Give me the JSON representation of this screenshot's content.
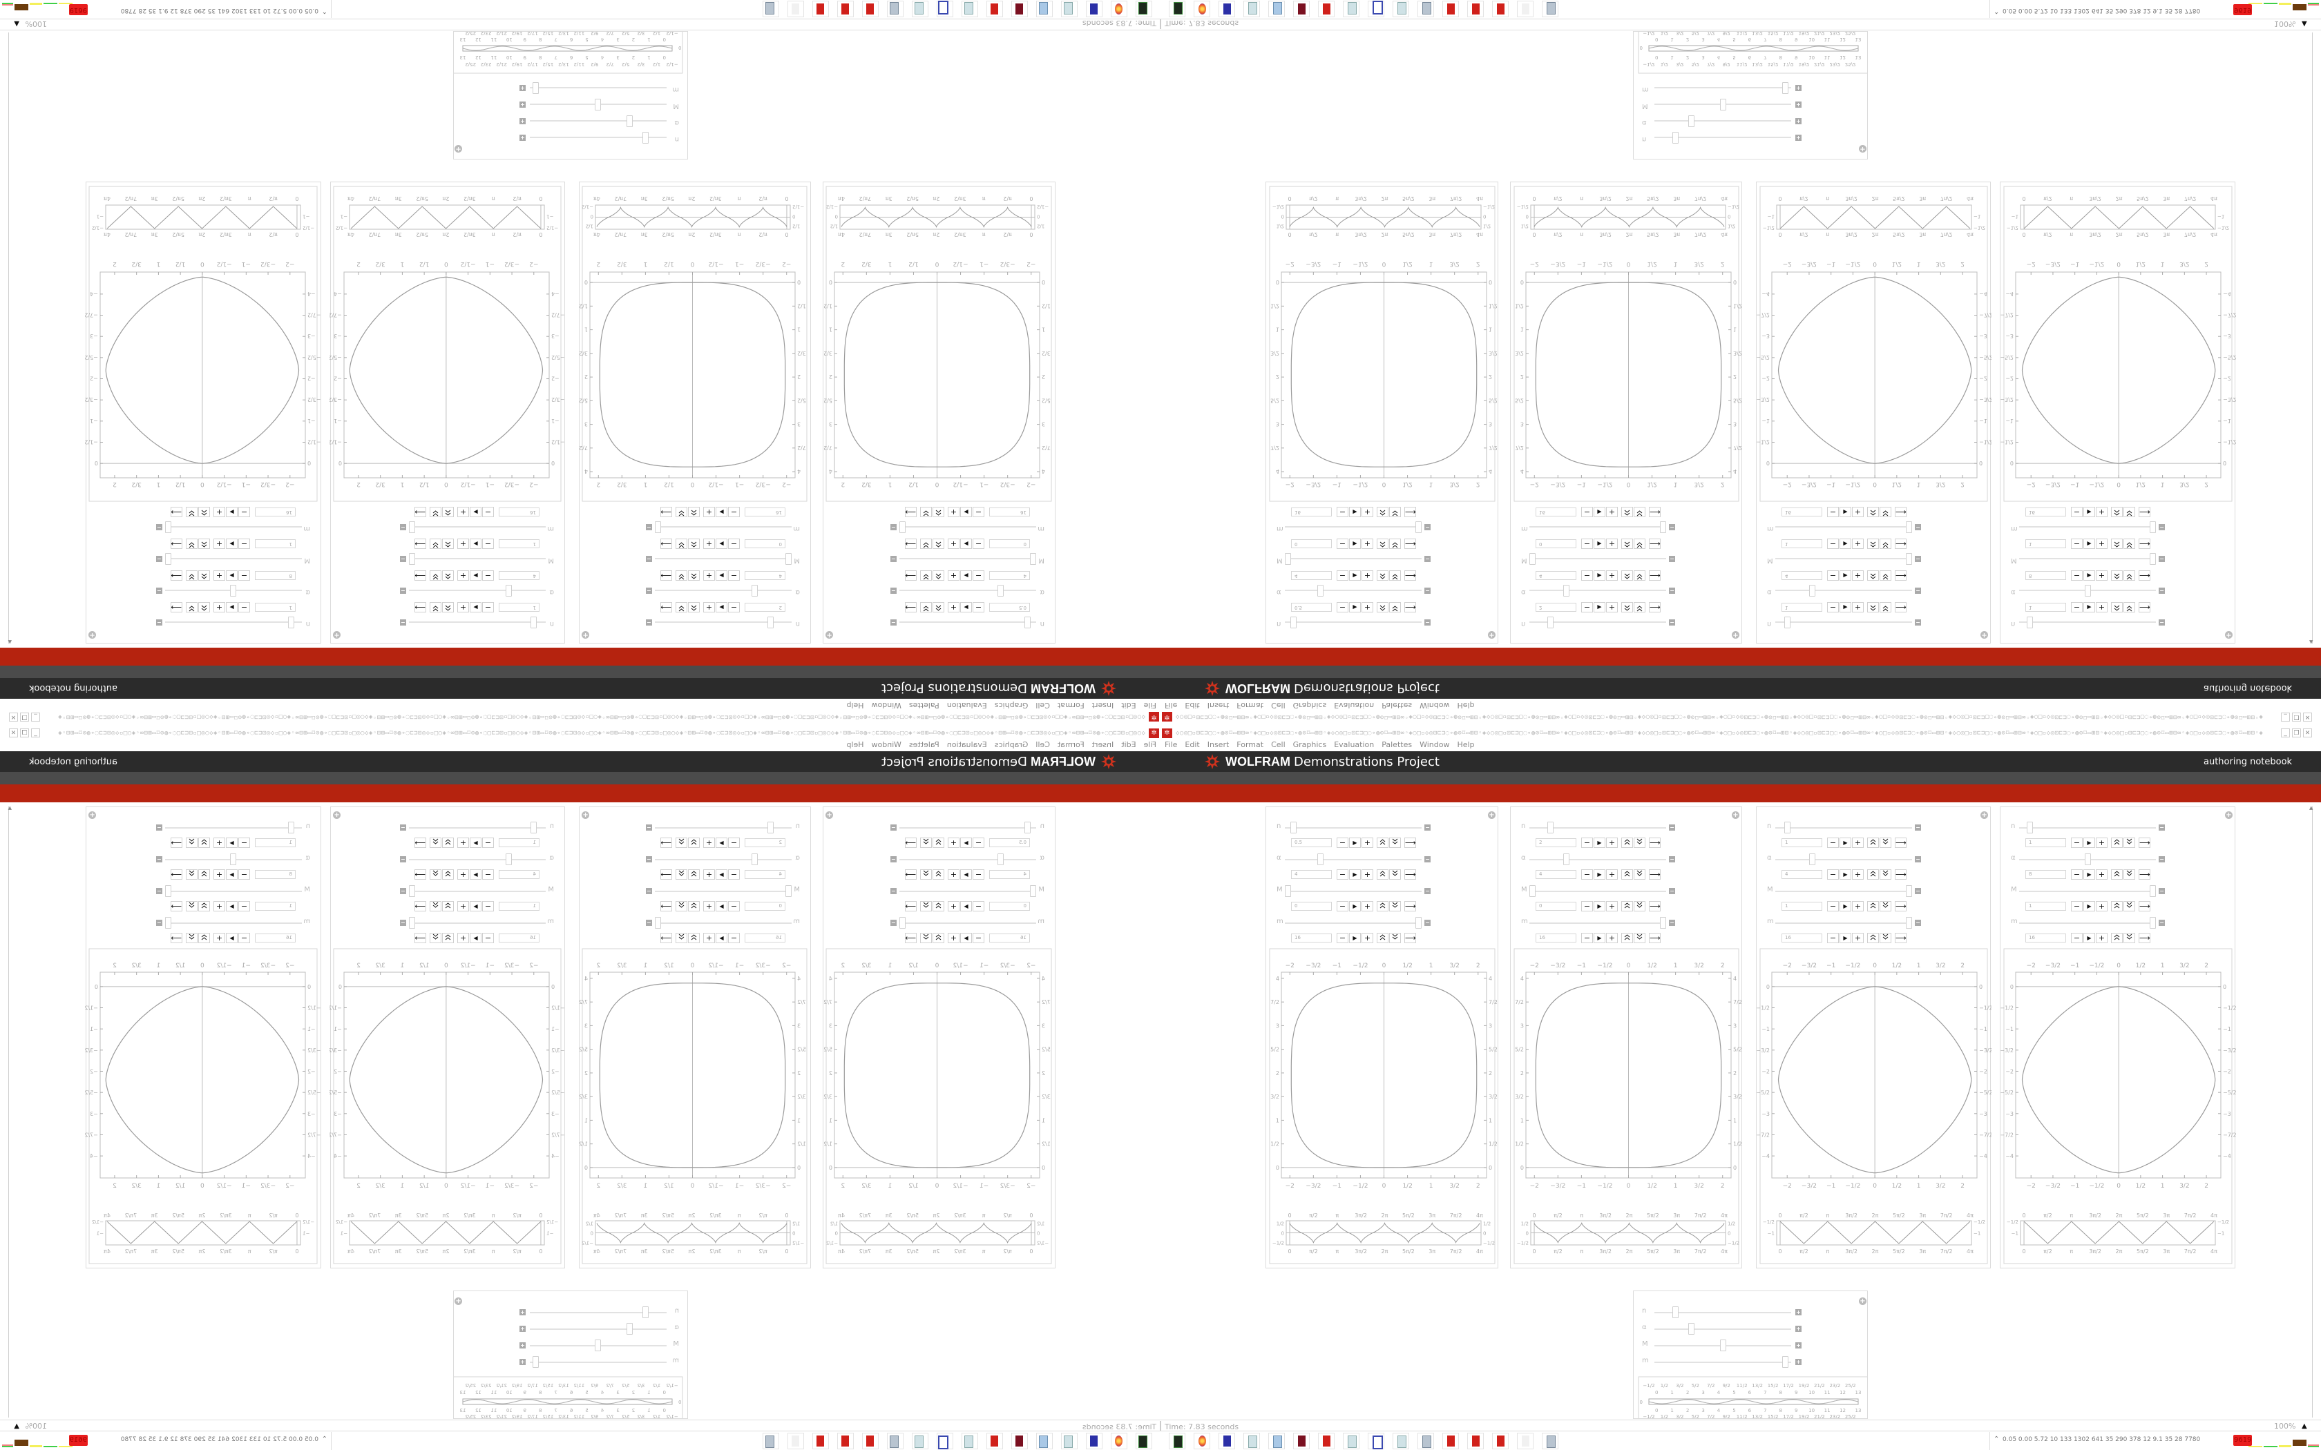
{
  "toolbar": {
    "glyphs": "◇○◎□▫⊡⊏⊐▢◌∘◍⊙⌑▭⊞⊟∞◦◈○□▫◇◎⊡⊏⊐◌∘◍⊙⌑▭⊞⊟◦◈",
    "app_icon": "wolfram-icon",
    "window_buttons": [
      "_",
      "❐",
      "✕"
    ]
  },
  "menu": [
    "File",
    "Edit",
    "Insert",
    "Format",
    "Cell",
    "Graphics",
    "Evaluation",
    "Palettes",
    "Window",
    "Help"
  ],
  "header": {
    "brand_bold": "WOLFRAM",
    "brand_rest": "Demonstrations Project",
    "link": "authoring notebook"
  },
  "colors": {
    "header_bg": "#2b2b2b",
    "band_bg": "#4b4b4b",
    "brand_red": "#b5230f",
    "curve": "#9a9a9a"
  },
  "plot_types": {
    "square": {
      "shape": "rounded-square",
      "center": [
        0,
        1.95
      ],
      "radii": [
        1.97,
        1.95
      ],
      "xlim": [
        -2.18,
        2.18
      ],
      "ylim": [
        -0.22,
        4.13
      ],
      "xticks": [
        -2,
        -1.5,
        -1,
        -0.5,
        0,
        0.5,
        1,
        1.5,
        2
      ],
      "xtick_labels": [
        "−2",
        "−3/2",
        "−1",
        "−1/2",
        "0",
        "1/2",
        "1",
        "3/2",
        "2"
      ],
      "yticks": [
        0,
        0.5,
        1,
        1.5,
        2,
        2.5,
        3,
        3.5,
        4
      ],
      "ytick_labels": [
        "0",
        "1/2",
        "1",
        "3/2",
        "2",
        "5/2",
        "3",
        "7/2",
        "4"
      ]
    },
    "diamond": {
      "shape": "rounded-diamond",
      "center": [
        0,
        -2.2
      ],
      "radii": [
        2.2,
        2.2
      ],
      "xlim": [
        -2.35,
        2.33
      ],
      "ylim": [
        -4.52,
        0.34
      ],
      "xticks": [
        -2,
        -1.5,
        -1,
        -0.5,
        0,
        0.5,
        1,
        1.5,
        2
      ],
      "xtick_labels": [
        "−2",
        "−3/2",
        "−1",
        "−1/2",
        "0",
        "1/2",
        "1",
        "3/2",
        "2"
      ],
      "yticks": [
        0,
        -0.5,
        -1,
        -1.5,
        -2,
        -2.5,
        -3,
        -3.5,
        -4
      ],
      "ytick_labels": [
        "0",
        "−1/2",
        "−1",
        "−3/2",
        "−2",
        "−5/2",
        "−3",
        "−7/2",
        "−4"
      ]
    }
  },
  "strip_types": {
    "cusp": {
      "shape": "cusp-wave",
      "xlim": [
        -0.23,
        12.66
      ],
      "ylim": [
        -0.62,
        0.62
      ],
      "xticks": [
        0,
        1.5708,
        3.1416,
        4.7124,
        6.2832,
        7.854,
        9.4248,
        10.9956,
        12.5664
      ],
      "xtick_labels": [
        "0",
        "π/2",
        "π",
        "3π/2",
        "2π",
        "5π/2",
        "3π",
        "7π/2",
        "4π"
      ],
      "yticks": [
        0.5,
        0,
        -0.5
      ],
      "ytick_labels": [
        "1/2",
        "0",
        "−1/2"
      ]
    },
    "zigzag": {
      "shape": "triangle-wave",
      "xlim": [
        -0.23,
        12.66
      ],
      "ylim": [
        -1.53,
        -0.47
      ],
      "xticks": [
        0,
        1.5708,
        3.1416,
        4.7124,
        6.2832,
        7.854,
        9.4248,
        10.9956,
        12.5664
      ],
      "xtick_labels": [
        "0",
        "π/2",
        "π",
        "3π/2",
        "2π",
        "5π/2",
        "3π",
        "7π/2",
        "4π"
      ],
      "yticks": [
        -0.5,
        -1
      ],
      "ytick_labels": [
        "−1/2",
        "−1"
      ]
    }
  },
  "panels": [
    {
      "plot": "square",
      "strip": "cusp",
      "controls": [
        {
          "label": "n",
          "value": "0.5",
          "slider": 0.04
        },
        {
          "label": "α",
          "value": "4",
          "slider": 0.25
        },
        {
          "label": "M",
          "value": "0",
          "slider": 0
        },
        {
          "label": "m",
          "value": "16",
          "slider": 1
        }
      ]
    },
    {
      "plot": "square",
      "strip": "cusp",
      "controls": [
        {
          "label": "n",
          "value": "2",
          "slider": 0.14
        },
        {
          "label": "α",
          "value": "4",
          "slider": 0.26
        },
        {
          "label": "M",
          "value": "0",
          "slider": 0
        },
        {
          "label": "m",
          "value": "16",
          "slider": 1
        }
      ]
    },
    {
      "plot": "diamond",
      "strip": "zigzag",
      "controls": [
        {
          "label": "n",
          "value": "1",
          "slider": 0.07
        },
        {
          "label": "α",
          "value": "4",
          "slider": 0.26
        },
        {
          "label": "M",
          "value": "1",
          "slider": 1
        },
        {
          "label": "m",
          "value": "16",
          "slider": 1
        }
      ]
    },
    {
      "plot": "diamond",
      "strip": "zigzag",
      "controls": [
        {
          "label": "n",
          "value": "1",
          "slider": 0.06
        },
        {
          "label": "α",
          "value": "8",
          "slider": 0.5
        },
        {
          "label": "M",
          "value": "1",
          "slider": 1
        },
        {
          "label": "m",
          "value": "16",
          "slider": 1
        }
      ]
    }
  ],
  "small_panel": {
    "controls": [
      {
        "label": "n",
        "slider": 0.14
      },
      {
        "label": "α",
        "slider": 0.26
      },
      {
        "label": "M",
        "slider": 0.5
      },
      {
        "label": "m",
        "slider": 0.98
      }
    ],
    "strip_ylabel": "0",
    "strip_xtick_labels": [
      "−1/2",
      "0",
      "1/2",
      "1",
      "3/2",
      "2",
      "5/2",
      "3",
      "7/2",
      "4",
      "9/2",
      "5",
      "11/2",
      "6",
      "13/2",
      "7",
      "15/2",
      "8",
      "17/2",
      "9",
      "19/2",
      "10",
      "21/2",
      "11",
      "23/2",
      "12",
      "25/2",
      "13"
    ]
  },
  "status": {
    "time": "Time: 7.83 seconds",
    "zoom": "100%"
  },
  "taskbar": {
    "icons": [
      "terminal",
      "firefox",
      "floppy-save",
      "notepad",
      "calculator",
      "winrar",
      "wolfram",
      "notepad",
      "window",
      "notepad",
      "scroll",
      "wolfram",
      "wolfram",
      "wolfram",
      "faded-app",
      "scroll"
    ]
  },
  "tray": {
    "values": "0.05 0.00 5.72 10 133 1302 641 35 290 378 12 9.1 35 28 7780",
    "alert": "9619"
  }
}
